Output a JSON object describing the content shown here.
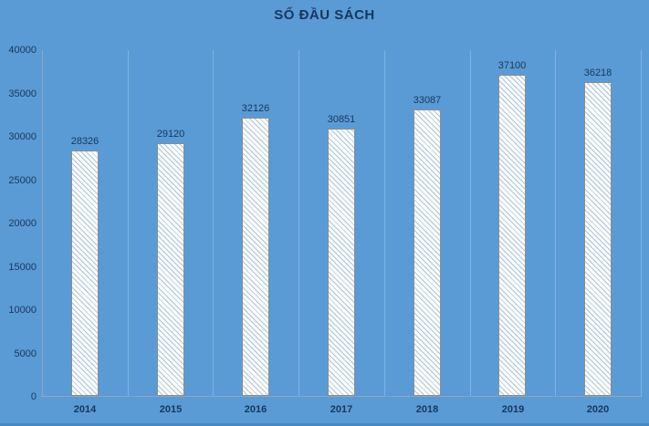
{
  "title": "SỐ ĐẦU SÁCH",
  "chart_data": {
    "type": "bar",
    "title": "SỐ ĐẦU SÁCH",
    "categories": [
      "2014",
      "2015",
      "2016",
      "2017",
      "2018",
      "2019",
      "2020"
    ],
    "values": [
      28326,
      29120,
      32126,
      30851,
      33087,
      37100,
      36218
    ],
    "xlabel": "",
    "ylabel": "",
    "ylim": [
      0,
      40000
    ],
    "ytick_step": 5000,
    "ytick_labels": [
      "0",
      "5000",
      "10000",
      "15000",
      "20000",
      "25000",
      "30000",
      "35000",
      "40000"
    ],
    "grid": "vertical-only",
    "legend": "none",
    "bar_style": "diagonal-hatch",
    "colors": {
      "background": "#5B9BD5",
      "text": "#17375D",
      "bar_fill": "#FFFFFF",
      "bar_hatch": "#A8C2D8",
      "bar_border": "#8C8C8C",
      "gridline": "#7FB2E2",
      "axis": "#8CA6C0",
      "bottom_edge": "#4A86C0"
    }
  }
}
